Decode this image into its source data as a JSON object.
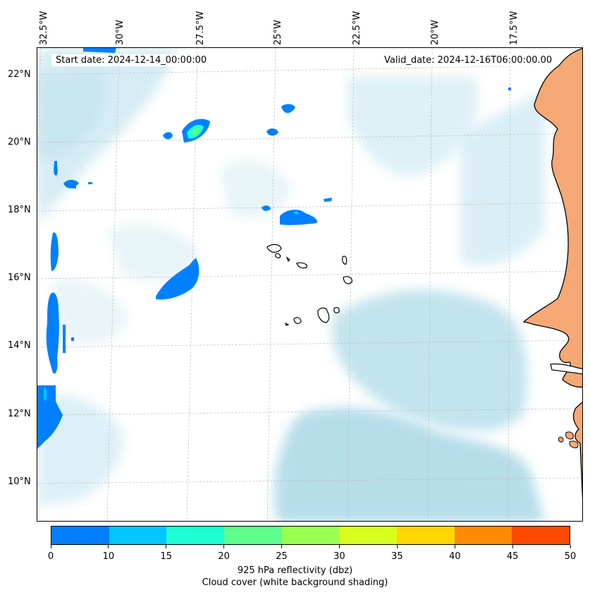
{
  "map": {
    "start_label": "Start date: 2024-12-14_00:00:00",
    "valid_label": "Valid_date: 2024-12-16T06:00:00.00",
    "lon_labels": [
      "32.5°W",
      "30°W",
      "27.5°W",
      "25°W",
      "22.5°W",
      "20°W",
      "17.5°W"
    ],
    "lat_labels": [
      "22°N",
      "20°N",
      "18°N",
      "16°N",
      "14°N",
      "12°N",
      "10°N"
    ],
    "land_color": "#f6a874",
    "cloud_color": "#a9d8e6",
    "coastline_color": "#000000"
  },
  "colorbar": {
    "ticks": [
      "0",
      "10",
      "15",
      "20",
      "25",
      "30",
      "35",
      "40",
      "45",
      "50"
    ],
    "colors": [
      "#0080ff",
      "#00c8ff",
      "#1effd8",
      "#5cff8c",
      "#9aff50",
      "#d8ff1e",
      "#ffd700",
      "#ff8a00",
      "#ff4a00"
    ],
    "label": "925 hPa reflectivity (dbz)",
    "sublabel": "Cloud cover (white background shading)"
  }
}
